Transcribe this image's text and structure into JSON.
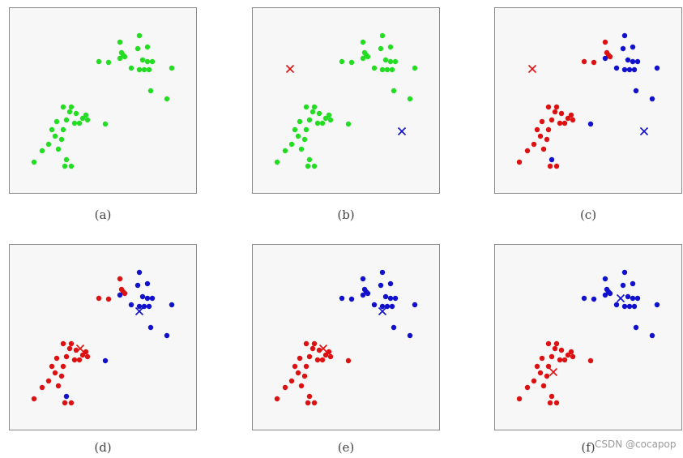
{
  "chart_data": {
    "type": "scatter",
    "xlim": [
      0,
      230
    ],
    "ylim": [
      0,
      228
    ],
    "grid": false,
    "colors": {
      "unassigned": "#22dd22",
      "cluster_1": "#dd1111",
      "cluster_2": "#1111cc"
    },
    "points": [
      {
        "x": 30,
        "y": 190
      },
      {
        "x": 40,
        "y": 176
      },
      {
        "x": 48,
        "y": 168
      },
      {
        "x": 56,
        "y": 158
      },
      {
        "x": 60,
        "y": 174
      },
      {
        "x": 64,
        "y": 162
      },
      {
        "x": 52,
        "y": 150
      },
      {
        "x": 58,
        "y": 140
      },
      {
        "x": 66,
        "y": 150
      },
      {
        "x": 70,
        "y": 138
      },
      {
        "x": 74,
        "y": 128
      },
      {
        "x": 82,
        "y": 130
      },
      {
        "x": 80,
        "y": 142
      },
      {
        "x": 86,
        "y": 142
      },
      {
        "x": 90,
        "y": 136
      },
      {
        "x": 94,
        "y": 132
      },
      {
        "x": 96,
        "y": 138
      },
      {
        "x": 66,
        "y": 122
      },
      {
        "x": 76,
        "y": 122
      },
      {
        "x": 68,
        "y": 195
      },
      {
        "x": 76,
        "y": 195
      },
      {
        "x": 70,
        "y": 187
      },
      {
        "x": 118,
        "y": 143
      },
      {
        "x": 110,
        "y": 66
      },
      {
        "x": 122,
        "y": 67
      },
      {
        "x": 136,
        "y": 42
      },
      {
        "x": 138,
        "y": 55
      },
      {
        "x": 140,
        "y": 58
      },
      {
        "x": 142,
        "y": 60
      },
      {
        "x": 136,
        "y": 62
      },
      {
        "x": 160,
        "y": 34
      },
      {
        "x": 158,
        "y": 50
      },
      {
        "x": 170,
        "y": 48
      },
      {
        "x": 164,
        "y": 64
      },
      {
        "x": 170,
        "y": 66
      },
      {
        "x": 176,
        "y": 66
      },
      {
        "x": 160,
        "y": 76
      },
      {
        "x": 166,
        "y": 76
      },
      {
        "x": 172,
        "y": 76
      },
      {
        "x": 150,
        "y": 74
      },
      {
        "x": 200,
        "y": 74
      },
      {
        "x": 174,
        "y": 102
      },
      {
        "x": 194,
        "y": 112
      }
    ],
    "panels": [
      {
        "caption": "(a)",
        "assignment": "",
        "centroids": []
      },
      {
        "caption": "(b)",
        "assignment": "",
        "centroids": [
          {
            "x": 46,
            "y": 75,
            "color": "#dd1111"
          },
          {
            "x": 184,
            "y": 152,
            "color": "#1111cc"
          }
        ]
      },
      {
        "caption": "(c)",
        "assignment": "1111111111111111111112211111122222222222222",
        "centroids": [
          {
            "x": 46,
            "y": 75,
            "color": "#dd1111"
          },
          {
            "x": 184,
            "y": 152,
            "color": "#1111cc"
          }
        ]
      },
      {
        "caption": "(d)",
        "assignment": "1111111111111111111112211111122222222222222",
        "centroids": [
          {
            "x": 87,
            "y": 128,
            "color": "#dd1111"
          },
          {
            "x": 160,
            "y": 82,
            "color": "#1111cc"
          }
        ]
      },
      {
        "caption": "(e)",
        "assignment": "1111111111111111111111122222222222222222222",
        "centroids": [
          {
            "x": 87,
            "y": 128,
            "color": "#dd1111"
          },
          {
            "x": 160,
            "y": 82,
            "color": "#1111cc"
          }
        ]
      },
      {
        "caption": "(f)",
        "assignment": "1111111111111111111111122222222222222222222",
        "centroids": [
          {
            "x": 72,
            "y": 157,
            "color": "#dd1111"
          },
          {
            "x": 155,
            "y": 66,
            "color": "#1111cc"
          }
        ]
      }
    ]
  },
  "watermark": "CSDN @cocapop"
}
